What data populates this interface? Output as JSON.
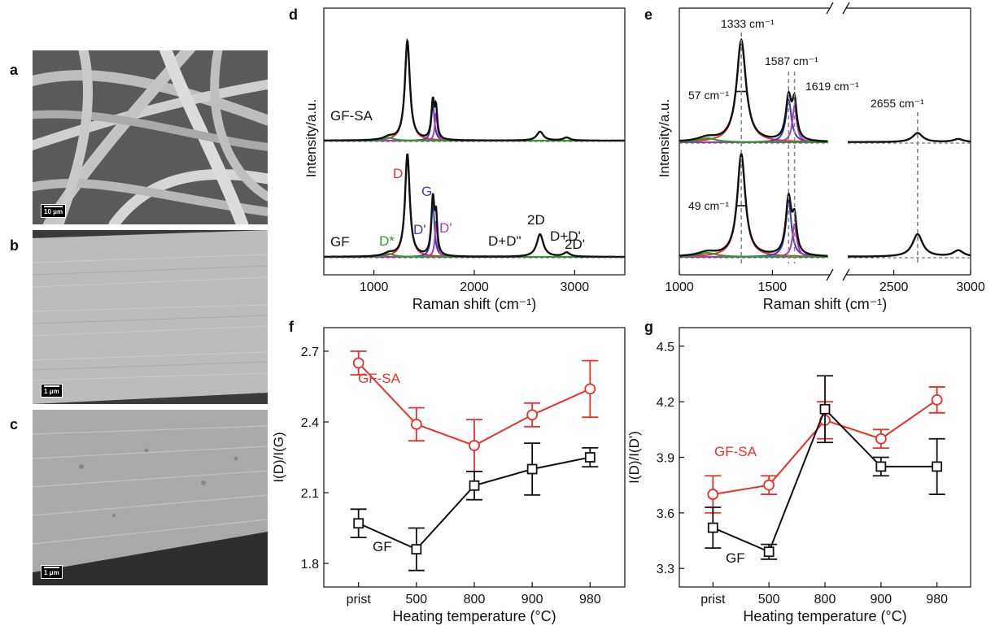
{
  "panels": {
    "a": {
      "letter": "a",
      "scale": "10 μm"
    },
    "b": {
      "letter": "b",
      "scale": "1 μm"
    },
    "c": {
      "letter": "c",
      "scale": "1 μm"
    },
    "d": {
      "letter": "d"
    },
    "e": {
      "letter": "e"
    },
    "f": {
      "letter": "f"
    },
    "g": {
      "letter": "g"
    }
  },
  "colors": {
    "red": "#e8312b",
    "black": "#111111",
    "blue": "#3a3fb8",
    "magenta": "#b03ab8",
    "green": "#2e9a2e",
    "gray": "#888888"
  },
  "chart_data": [
    {
      "id": "d",
      "type": "line",
      "xlabel": "Raman shift (cm⁻¹)",
      "ylabel": "Intensity/a.u.",
      "xlim": [
        500,
        3500
      ],
      "xticks": [
        1000,
        2000,
        3000
      ],
      "series": [
        {
          "name": "GF-SA",
          "peaks": [
            [
              1333,
              1.0,
              30
            ],
            [
              1587,
              0.38,
              18
            ],
            [
              1619,
              0.28,
              14
            ],
            [
              1150,
              0.03,
              60
            ],
            [
              2655,
              0.09,
              40
            ],
            [
              2920,
              0.03,
              40
            ]
          ]
        },
        {
          "name": "GF",
          "peaks": [
            [
              1333,
              1.0,
              28
            ],
            [
              1587,
              0.55,
              18
            ],
            [
              1619,
              0.35,
              14
            ],
            [
              1150,
              0.03,
              60
            ],
            [
              2655,
              0.22,
              40
            ],
            [
              2920,
              0.04,
              40
            ]
          ]
        }
      ],
      "annotations": [
        "D",
        "G",
        "D*",
        "D\"",
        "D'",
        "2D",
        "D+D\"",
        "D+D'",
        "2D'"
      ]
    },
    {
      "id": "e",
      "type": "line",
      "xlabel": "Raman shift (cm⁻¹)",
      "ylabel": "Intensity/a.u.",
      "broken_axis": true,
      "segments": [
        [
          1000,
          1800
        ],
        [
          2200,
          3000
        ]
      ],
      "xticks": [
        1000,
        1500,
        2500,
        3000
      ],
      "peak_positions": [
        1333,
        1587,
        1619,
        2655
      ],
      "annotations": [
        "1333 cm⁻¹",
        "1587 cm⁻¹",
        "1619 cm⁻¹",
        "2655 cm⁻¹",
        "57 cm⁻¹",
        "49 cm⁻¹"
      ]
    },
    {
      "id": "f",
      "type": "line",
      "categories": [
        "prist",
        "500",
        "800",
        "900",
        "980"
      ],
      "xlabel": "Heating temperature (°C)",
      "ylabel": "I(D)/I(G)",
      "ylim": [
        1.7,
        2.8
      ],
      "yticks": [
        1.8,
        2.1,
        2.4,
        2.7
      ],
      "series": [
        {
          "name": "GF-SA",
          "values": [
            2.65,
            2.39,
            2.3,
            2.43,
            2.54
          ],
          "errors": [
            0.05,
            0.07,
            0.11,
            0.05,
            0.12
          ]
        },
        {
          "name": "GF",
          "values": [
            1.97,
            1.86,
            2.13,
            2.2,
            2.25
          ],
          "errors": [
            0.06,
            0.09,
            0.06,
            0.11,
            0.04
          ]
        }
      ]
    },
    {
      "id": "g",
      "type": "line",
      "categories": [
        "prist",
        "500",
        "800",
        "900",
        "980"
      ],
      "xlabel": "Heating temperature (°C)",
      "ylabel": "I(D)/I(D')",
      "ylim": [
        3.2,
        4.6
      ],
      "yticks": [
        3.3,
        3.6,
        3.9,
        4.2,
        4.5
      ],
      "series": [
        {
          "name": "GF-SA",
          "values": [
            3.7,
            3.75,
            4.1,
            4.0,
            4.21
          ],
          "errors": [
            0.1,
            0.05,
            0.1,
            0.05,
            0.07
          ]
        },
        {
          "name": "GF",
          "values": [
            3.52,
            3.39,
            4.16,
            3.85,
            3.85
          ],
          "errors": [
            0.11,
            0.04,
            0.18,
            0.05,
            0.15
          ]
        }
      ]
    }
  ]
}
